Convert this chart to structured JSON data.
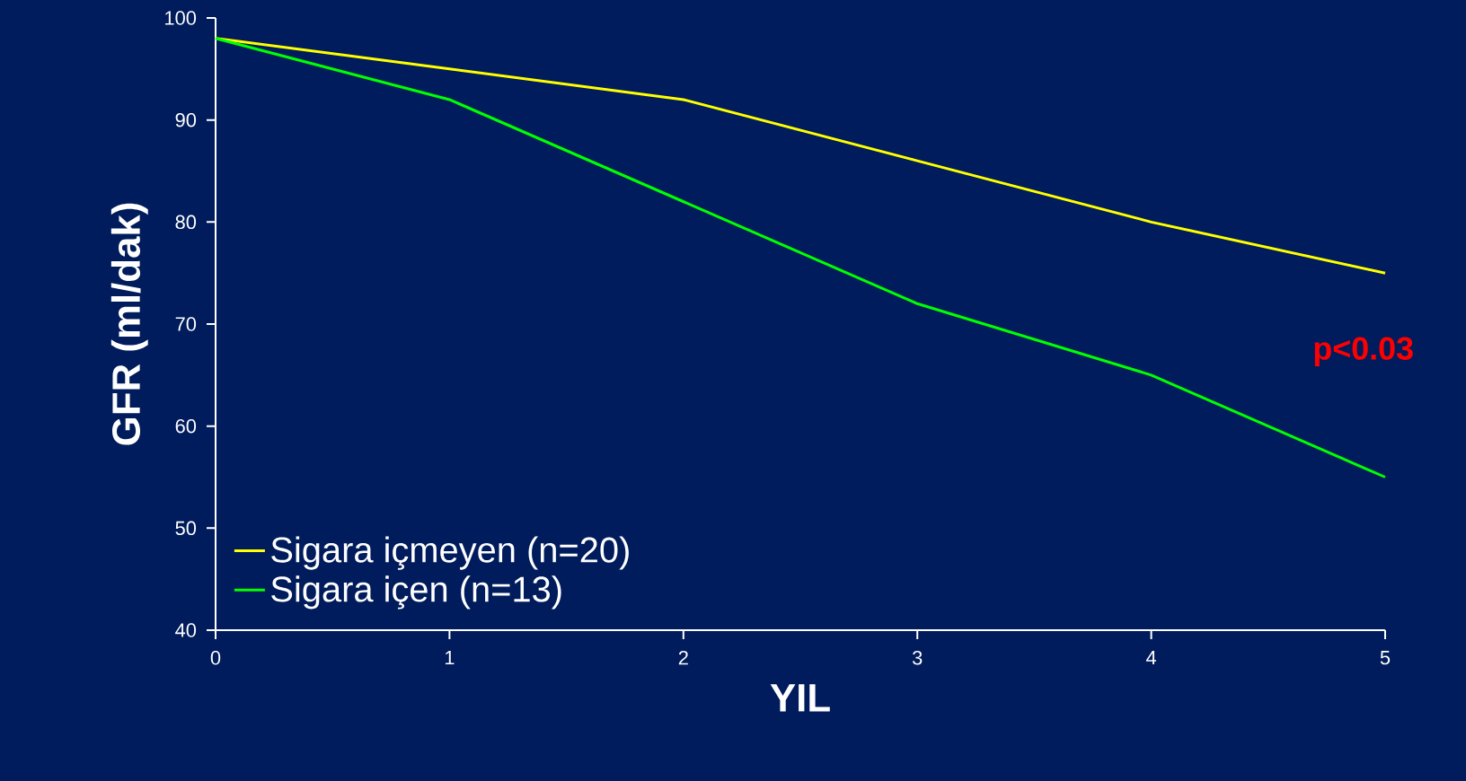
{
  "chart_data": {
    "type": "line",
    "xlabel": "YIL",
    "ylabel": "GFR (ml/dak)",
    "x": [
      0,
      1,
      2,
      3,
      4,
      5
    ],
    "series": [
      {
        "name": "Sigara içmeyen (n=20)",
        "color": "#ffff00",
        "values": [
          98,
          95,
          92,
          86,
          80,
          75
        ]
      },
      {
        "name": "Sigara içen (n=13)",
        "color": "#00ff00",
        "values": [
          98,
          92,
          82,
          72,
          65,
          55
        ]
      }
    ],
    "xlim": [
      0,
      5
    ],
    "ylim": [
      40,
      100
    ],
    "xticks": [
      0,
      1,
      2,
      3,
      4,
      5
    ],
    "yticks": [
      40,
      50,
      60,
      70,
      80,
      90,
      100
    ],
    "annotations": [
      "p<0.03"
    ],
    "legend": "bottom left",
    "grid": false,
    "line_style": "solid"
  }
}
